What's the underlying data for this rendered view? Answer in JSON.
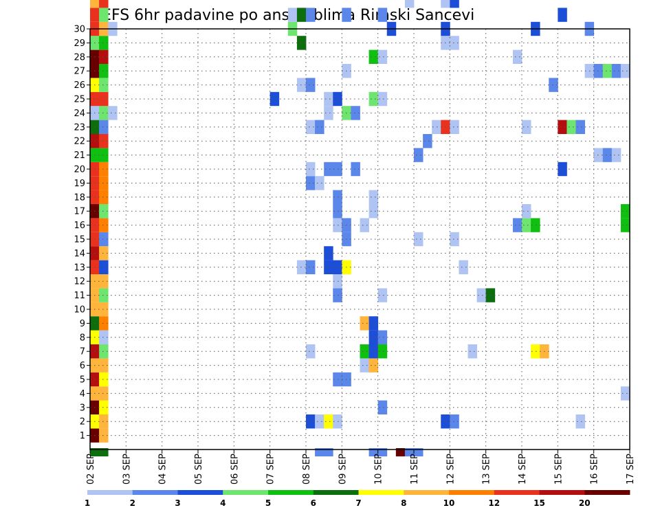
{
  "chart_data": {
    "type": "heatmap",
    "title": "GEFS 6hr padavine po ansamblima Rimski Sancevi",
    "xlabel": "",
    "ylabel": "",
    "x_ticks": [
      "02 SEP",
      "03 SEP",
      "04 SEP",
      "05 SEP",
      "06 SEP",
      "07 SEP",
      "08 SEP",
      "09 SEP",
      "10 SEP",
      "11 SEP",
      "12 SEP",
      "13 SEP",
      "14 SEP",
      "15 SEP",
      "16 SEP",
      "17 SEP"
    ],
    "x_range_days": [
      0,
      15
    ],
    "y_ticks": [
      1,
      2,
      3,
      4,
      5,
      6,
      7,
      8,
      9,
      10,
      11,
      12,
      13,
      14,
      15,
      16,
      17,
      18,
      19,
      20,
      21,
      22,
      23,
      24,
      25,
      26,
      27,
      28,
      29,
      30
    ],
    "y_range": [
      0,
      30
    ],
    "grid": true,
    "time_step_hours": 6,
    "colorbar": {
      "tick_labels": [
        "1",
        "2",
        "3",
        "4",
        "5",
        "6",
        "7",
        "8",
        "10",
        "12",
        "15",
        "20"
      ],
      "colors": [
        "#b0c4f4",
        "#5b86ea",
        "#1d4ed8",
        "#6ee56e",
        "#10c010",
        "#0c6e0c",
        "#ffff00",
        "#ffb43c",
        "#ff8000",
        "#e8321e",
        "#b40e0e",
        "#680000"
      ]
    },
    "cells_format": "[member, column index from 02 SEP in 6h steps, color class 1-12]",
    "cells": [
      [
        0,
        0,
        6
      ],
      [
        0,
        1,
        6
      ],
      [
        0,
        25,
        2
      ],
      [
        0,
        26,
        2
      ],
      [
        0,
        31,
        2
      ],
      [
        0,
        32,
        2
      ],
      [
        0,
        34,
        12
      ],
      [
        0,
        35,
        2
      ],
      [
        0,
        36,
        2
      ],
      [
        1,
        0,
        12
      ],
      [
        1,
        1,
        8
      ],
      [
        2,
        0,
        7
      ],
      [
        2,
        1,
        8
      ],
      [
        2,
        24,
        3
      ],
      [
        2,
        25,
        1
      ],
      [
        2,
        26,
        7
      ],
      [
        2,
        27,
        1
      ],
      [
        2,
        39,
        3
      ],
      [
        2,
        40,
        2
      ],
      [
        2,
        54,
        1
      ],
      [
        3,
        0,
        12
      ],
      [
        3,
        1,
        7
      ],
      [
        3,
        32,
        2
      ],
      [
        4,
        0,
        8
      ],
      [
        4,
        1,
        8
      ],
      [
        4,
        59,
        1
      ],
      [
        5,
        0,
        11
      ],
      [
        5,
        1,
        7
      ],
      [
        5,
        27,
        2
      ],
      [
        5,
        28,
        2
      ],
      [
        6,
        0,
        8
      ],
      [
        6,
        1,
        8
      ],
      [
        6,
        30,
        1
      ],
      [
        6,
        31,
        8
      ],
      [
        7,
        0,
        11
      ],
      [
        7,
        1,
        4
      ],
      [
        7,
        24,
        1
      ],
      [
        7,
        30,
        5
      ],
      [
        7,
        31,
        3
      ],
      [
        7,
        32,
        5
      ],
      [
        7,
        42,
        1
      ],
      [
        7,
        49,
        7
      ],
      [
        7,
        50,
        8
      ],
      [
        8,
        0,
        7
      ],
      [
        8,
        1,
        1
      ],
      [
        8,
        31,
        3
      ],
      [
        8,
        32,
        2
      ],
      [
        9,
        0,
        6
      ],
      [
        9,
        1,
        9
      ],
      [
        9,
        30,
        8
      ],
      [
        9,
        31,
        3
      ],
      [
        10,
        0,
        8
      ],
      [
        10,
        1,
        8
      ],
      [
        11,
        0,
        8
      ],
      [
        11,
        1,
        4
      ],
      [
        11,
        27,
        2
      ],
      [
        11,
        32,
        1
      ],
      [
        11,
        43,
        1
      ],
      [
        11,
        44,
        6
      ],
      [
        12,
        0,
        8
      ],
      [
        12,
        1,
        8
      ],
      [
        12,
        27,
        1
      ],
      [
        13,
        0,
        10
      ],
      [
        13,
        1,
        3
      ],
      [
        13,
        23,
        1
      ],
      [
        13,
        24,
        2
      ],
      [
        13,
        26,
        3
      ],
      [
        13,
        27,
        3
      ],
      [
        13,
        28,
        7
      ],
      [
        13,
        41,
        1
      ],
      [
        14,
        0,
        11
      ],
      [
        14,
        1,
        8
      ],
      [
        14,
        26,
        3
      ],
      [
        15,
        0,
        10
      ],
      [
        15,
        1,
        2
      ],
      [
        15,
        28,
        2
      ],
      [
        15,
        36,
        1
      ],
      [
        15,
        40,
        1
      ],
      [
        16,
        0,
        10
      ],
      [
        16,
        1,
        9
      ],
      [
        16,
        27,
        1
      ],
      [
        16,
        28,
        2
      ],
      [
        16,
        30,
        1
      ],
      [
        16,
        47,
        2
      ],
      [
        16,
        48,
        4
      ],
      [
        16,
        49,
        5
      ],
      [
        16,
        59,
        5
      ],
      [
        17,
        0,
        12
      ],
      [
        17,
        1,
        4
      ],
      [
        17,
        27,
        2
      ],
      [
        17,
        31,
        1
      ],
      [
        17,
        48,
        1
      ],
      [
        17,
        59,
        5
      ],
      [
        18,
        0,
        10
      ],
      [
        18,
        1,
        9
      ],
      [
        18,
        27,
        2
      ],
      [
        18,
        31,
        1
      ],
      [
        19,
        0,
        10
      ],
      [
        19,
        1,
        9
      ],
      [
        19,
        24,
        2
      ],
      [
        19,
        25,
        1
      ],
      [
        20,
        0,
        10
      ],
      [
        20,
        1,
        9
      ],
      [
        20,
        24,
        1
      ],
      [
        20,
        26,
        2
      ],
      [
        20,
        27,
        2
      ],
      [
        20,
        29,
        2
      ],
      [
        20,
        52,
        3
      ],
      [
        21,
        0,
        5
      ],
      [
        21,
        1,
        5
      ],
      [
        21,
        36,
        2
      ],
      [
        21,
        56,
        1
      ],
      [
        21,
        57,
        2
      ],
      [
        21,
        58,
        1
      ],
      [
        22,
        0,
        11
      ],
      [
        22,
        1,
        10
      ],
      [
        22,
        37,
        2
      ],
      [
        23,
        0,
        6
      ],
      [
        23,
        1,
        2
      ],
      [
        23,
        24,
        1
      ],
      [
        23,
        25,
        2
      ],
      [
        23,
        38,
        1
      ],
      [
        23,
        39,
        10
      ],
      [
        23,
        40,
        1
      ],
      [
        23,
        48,
        1
      ],
      [
        23,
        52,
        11
      ],
      [
        23,
        53,
        4
      ],
      [
        23,
        54,
        2
      ],
      [
        24,
        0,
        1
      ],
      [
        24,
        1,
        4
      ],
      [
        24,
        2,
        1
      ],
      [
        24,
        26,
        1
      ],
      [
        24,
        28,
        4
      ],
      [
        24,
        29,
        2
      ],
      [
        25,
        0,
        10
      ],
      [
        25,
        1,
        10
      ],
      [
        25,
        20,
        3
      ],
      [
        25,
        26,
        1
      ],
      [
        25,
        27,
        3
      ],
      [
        25,
        31,
        4
      ],
      [
        25,
        32,
        1
      ],
      [
        26,
        0,
        7
      ],
      [
        26,
        1,
        4
      ],
      [
        26,
        23,
        1
      ],
      [
        26,
        24,
        2
      ],
      [
        26,
        51,
        2
      ],
      [
        27,
        0,
        12
      ],
      [
        27,
        1,
        5
      ],
      [
        27,
        28,
        1
      ],
      [
        27,
        55,
        1
      ],
      [
        27,
        56,
        2
      ],
      [
        27,
        57,
        4
      ],
      [
        27,
        58,
        2
      ],
      [
        27,
        59,
        1
      ],
      [
        28,
        0,
        12
      ],
      [
        28,
        1,
        11
      ],
      [
        28,
        31,
        5
      ],
      [
        28,
        32,
        1
      ],
      [
        28,
        47,
        1
      ],
      [
        29,
        0,
        4
      ],
      [
        29,
        1,
        5
      ],
      [
        29,
        23,
        6
      ],
      [
        29,
        39,
        1
      ],
      [
        29,
        40,
        1
      ],
      [
        30,
        0,
        10
      ],
      [
        30,
        1,
        8
      ],
      [
        30,
        2,
        1
      ],
      [
        30,
        22,
        4
      ],
      [
        30,
        33,
        3
      ],
      [
        30,
        39,
        3
      ],
      [
        30,
        49,
        3
      ],
      [
        30,
        55,
        2
      ],
      [
        31,
        0,
        10
      ],
      [
        31,
        1,
        4
      ],
      [
        31,
        22,
        1
      ],
      [
        31,
        23,
        6
      ],
      [
        31,
        24,
        2
      ],
      [
        31,
        28,
        2
      ],
      [
        31,
        32,
        2
      ],
      [
        31,
        52,
        3
      ],
      [
        32,
        0,
        8
      ],
      [
        32,
        1,
        10
      ],
      [
        32,
        35,
        1
      ],
      [
        32,
        39,
        1
      ],
      [
        32,
        40,
        3
      ]
    ]
  }
}
